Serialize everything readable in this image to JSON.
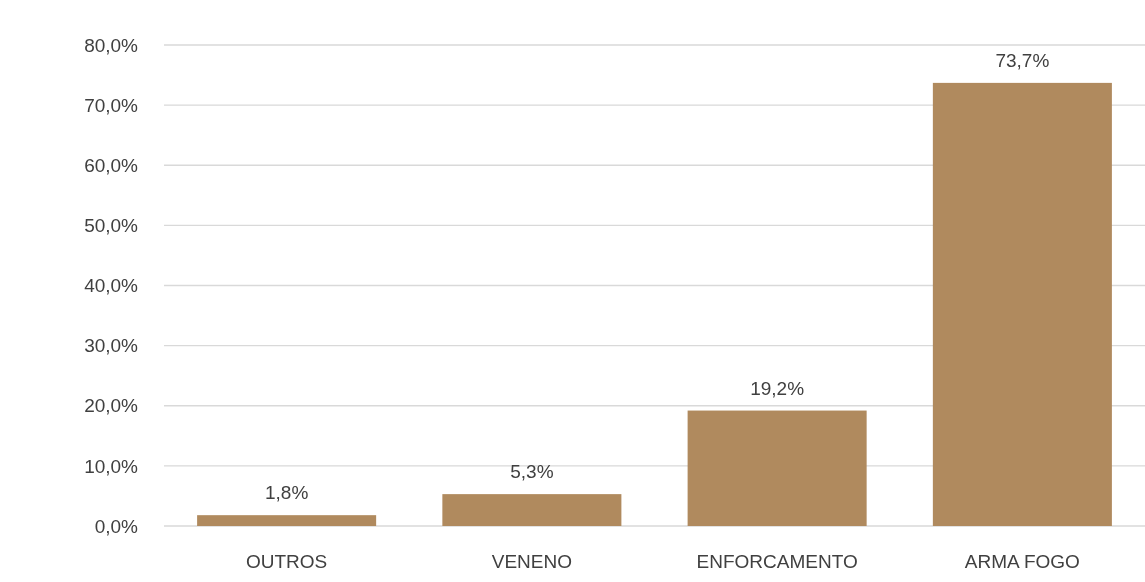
{
  "chart_data": {
    "type": "bar",
    "categories": [
      "OUTROS",
      "VENENO",
      "ENFORCAMENTO",
      "ARMA FOGO"
    ],
    "values": [
      1.8,
      5.3,
      19.2,
      73.7
    ],
    "value_labels": [
      "1,8%",
      "5,3%",
      "19,2%",
      "73,7%"
    ],
    "color": "#b08a5e",
    "ylim": [
      0,
      80
    ],
    "yticks": [
      {
        "value": 0,
        "label": "0,0%"
      },
      {
        "value": 10,
        "label": "10,0%"
      },
      {
        "value": 20,
        "label": "20,0%"
      },
      {
        "value": 30,
        "label": "30,0%"
      },
      {
        "value": 40,
        "label": "40,0%"
      },
      {
        "value": 50,
        "label": "50,0%"
      },
      {
        "value": 60,
        "label": "60,0%"
      },
      {
        "value": 70,
        "label": "70,0%"
      },
      {
        "value": 80,
        "label": "80,0%"
      }
    ],
    "grid": true
  }
}
